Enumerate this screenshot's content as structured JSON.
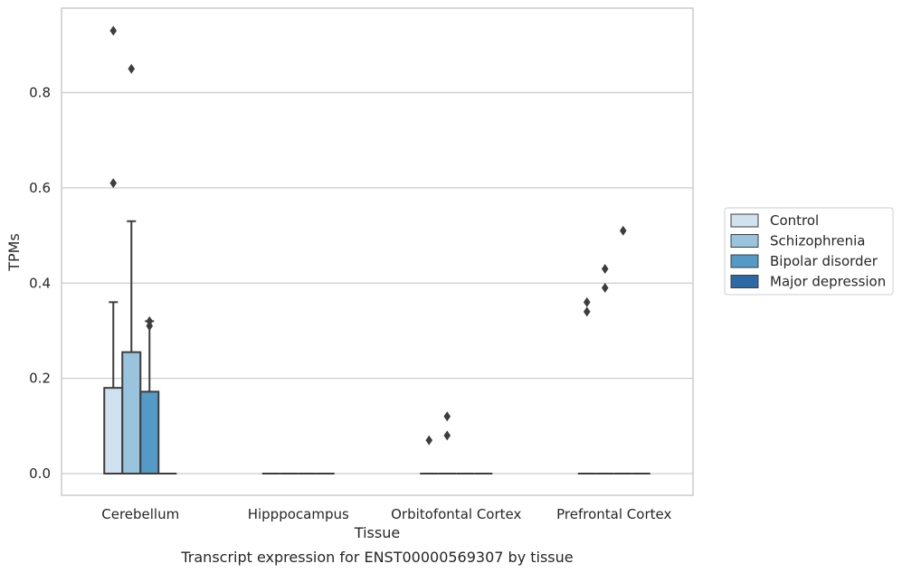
{
  "chart_data": {
    "type": "box",
    "xlabel": "Tissue",
    "ylabel": "TPMs",
    "caption": "Transcript expression for ENST00000569307 by tissue",
    "categories": [
      "Cerebellum",
      "Hipppocampus",
      "Orbitofontal Cortex",
      "Prefrontal Cortex"
    ],
    "ylim": [
      -0.045,
      0.97
    ],
    "yticks": [
      0.0,
      0.2,
      0.4,
      0.6,
      0.8
    ],
    "ytick_labels": [
      "0.0",
      "0.2",
      "0.4",
      "0.6",
      "0.8"
    ],
    "grid": true,
    "legend_placement": "right",
    "series": [
      {
        "name": "Control",
        "color": "#d0e1f0",
        "boxes": [
          {
            "q1": 0.0,
            "median": 0.0,
            "q3": 0.18,
            "whisker_low": 0.0,
            "whisker_high": 0.36,
            "outliers": [
              0.61,
              0.93
            ]
          },
          {
            "q1": 0.0,
            "median": 0.0,
            "q3": 0.0,
            "whisker_low": 0.0,
            "whisker_high": 0.0,
            "outliers": []
          },
          {
            "q1": 0.0,
            "median": 0.0,
            "q3": 0.0,
            "whisker_low": 0.0,
            "whisker_high": 0.0,
            "outliers": [
              0.07
            ]
          },
          {
            "q1": 0.0,
            "median": 0.0,
            "q3": 0.0,
            "whisker_low": 0.0,
            "whisker_high": 0.0,
            "outliers": [
              0.34,
              0.36
            ]
          }
        ]
      },
      {
        "name": "Schizophrenia",
        "color": "#9ac4dd",
        "boxes": [
          {
            "q1": 0.0,
            "median": 0.0,
            "q3": 0.255,
            "whisker_low": 0.0,
            "whisker_high": 0.53,
            "outliers": [
              0.85
            ]
          },
          {
            "q1": 0.0,
            "median": 0.0,
            "q3": 0.0,
            "whisker_low": 0.0,
            "whisker_high": 0.0,
            "outliers": []
          },
          {
            "q1": 0.0,
            "median": 0.0,
            "q3": 0.0,
            "whisker_low": 0.0,
            "whisker_high": 0.0,
            "outliers": [
              0.08,
              0.12
            ]
          },
          {
            "q1": 0.0,
            "median": 0.0,
            "q3": 0.0,
            "whisker_low": 0.0,
            "whisker_high": 0.0,
            "outliers": [
              0.39,
              0.43
            ]
          }
        ]
      },
      {
        "name": "Bipolar disorder",
        "color": "#5599c6",
        "boxes": [
          {
            "q1": 0.0,
            "median": 0.0,
            "q3": 0.172,
            "whisker_low": 0.0,
            "whisker_high": 0.32,
            "outliers": [
              0.31,
              0.32
            ]
          },
          {
            "q1": 0.0,
            "median": 0.0,
            "q3": 0.0,
            "whisker_low": 0.0,
            "whisker_high": 0.0,
            "outliers": []
          },
          {
            "q1": 0.0,
            "median": 0.0,
            "q3": 0.0,
            "whisker_low": 0.0,
            "whisker_high": 0.0,
            "outliers": []
          },
          {
            "q1": 0.0,
            "median": 0.0,
            "q3": 0.0,
            "whisker_low": 0.0,
            "whisker_high": 0.0,
            "outliers": [
              0.51
            ]
          }
        ]
      },
      {
        "name": "Major depression",
        "color": "#2b6aa6",
        "boxes": [
          {
            "q1": 0.0,
            "median": 0.0,
            "q3": 0.0,
            "whisker_low": 0.0,
            "whisker_high": 0.0,
            "outliers": []
          },
          {
            "q1": 0.0,
            "median": 0.0,
            "q3": 0.0,
            "whisker_low": 0.0,
            "whisker_high": 0.0,
            "outliers": []
          },
          {
            "q1": 0.0,
            "median": 0.0,
            "q3": 0.0,
            "whisker_low": 0.0,
            "whisker_high": 0.0,
            "outliers": []
          },
          {
            "q1": 0.0,
            "median": 0.0,
            "q3": 0.0,
            "whisker_low": 0.0,
            "whisker_high": 0.0,
            "outliers": []
          }
        ]
      }
    ]
  }
}
